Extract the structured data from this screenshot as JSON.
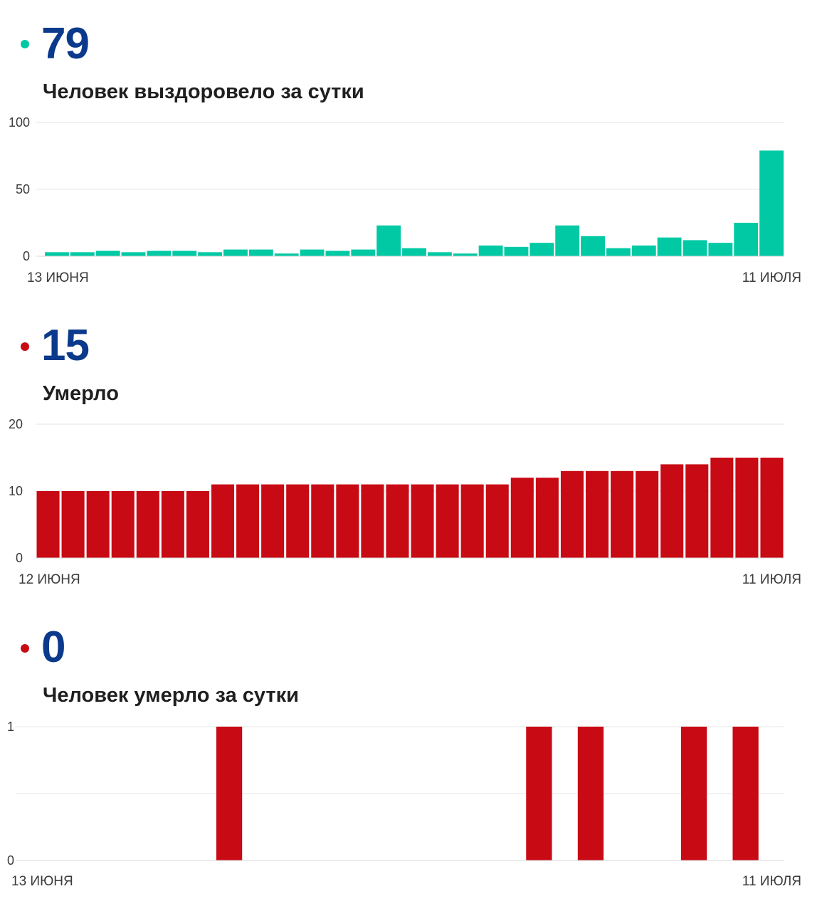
{
  "chart_data": [
    {
      "type": "bar",
      "headline_value": "79",
      "title": "Человек выздоровело за сутки",
      "color": "#00c9a3",
      "ylim": [
        0,
        100
      ],
      "yticks": [
        "100",
        "50",
        "0"
      ],
      "x_start_label": "13 ИЮНЯ",
      "x_end_label": "11 ИЮЛЯ",
      "grid": true,
      "values": [
        3,
        3,
        4,
        3,
        4,
        4,
        3,
        5,
        5,
        2,
        5,
        4,
        5,
        23,
        6,
        3,
        2,
        8,
        7,
        10,
        23,
        15,
        6,
        8,
        14,
        12,
        10,
        25,
        79
      ]
    },
    {
      "type": "bar",
      "headline_value": "15",
      "title": "Умерло",
      "color": "#c80a14",
      "ylim": [
        0,
        20
      ],
      "yticks": [
        "20",
        "10",
        "0"
      ],
      "x_start_label": "12 ИЮНЯ",
      "x_end_label": "11 ИЮЛЯ",
      "grid": true,
      "values": [
        10,
        10,
        10,
        10,
        10,
        10,
        10,
        11,
        11,
        11,
        11,
        11,
        11,
        11,
        11,
        11,
        11,
        11,
        11,
        12,
        12,
        13,
        13,
        13,
        13,
        14,
        14,
        15,
        15,
        15
      ]
    },
    {
      "type": "bar",
      "headline_value": "0",
      "title": "Человек умерло за сутки",
      "color": "#c80a14",
      "ylim": [
        0,
        1
      ],
      "yticks": [
        "1",
        "",
        "0"
      ],
      "x_start_label": "13 ИЮНЯ",
      "x_end_label": "11 ИЮЛЯ",
      "grid": true,
      "values": [
        0,
        0,
        0,
        0,
        0,
        0,
        0,
        1,
        0,
        0,
        0,
        0,
        0,
        0,
        0,
        0,
        0,
        0,
        0,
        1,
        0,
        1,
        0,
        0,
        0,
        1,
        0,
        1,
        0
      ]
    }
  ]
}
